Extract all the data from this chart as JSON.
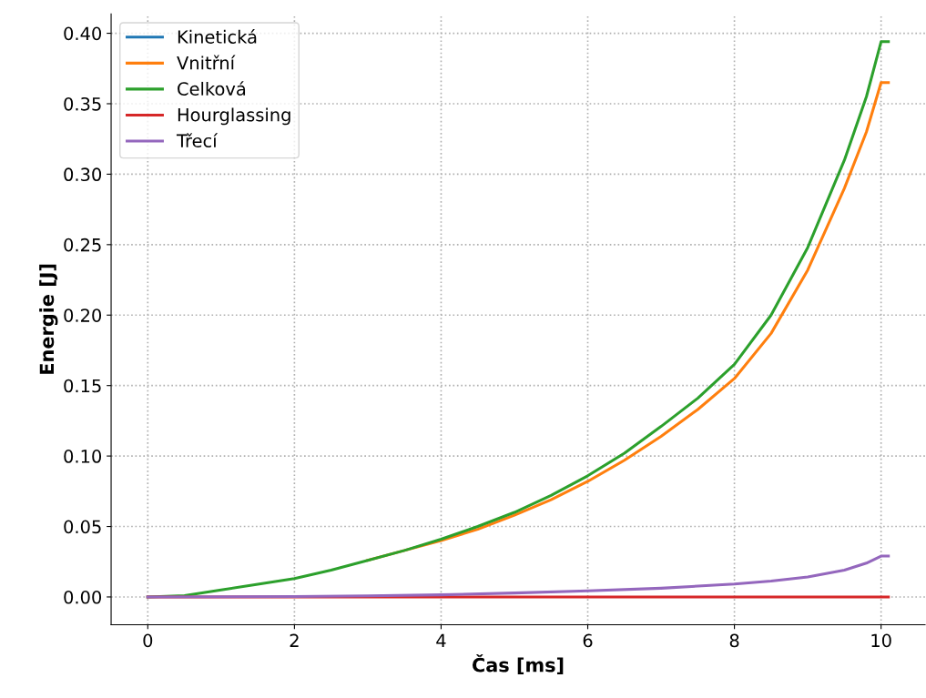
{
  "chart_data": {
    "type": "line",
    "xlabel": "Čas [ms]",
    "ylabel": "Energie [J]",
    "xlim": [
      -0.5,
      10.6
    ],
    "ylim": [
      -0.0197,
      0.4137
    ],
    "xticks": [
      0,
      2,
      4,
      6,
      8,
      10
    ],
    "yticks": [
      {
        "value": 0,
        "label": "0.00"
      },
      {
        "value": 0.05,
        "label": "0.05"
      },
      {
        "value": 0.1,
        "label": "0.10"
      },
      {
        "value": 0.15,
        "label": "0.15"
      },
      {
        "value": 0.2,
        "label": "0.20"
      },
      {
        "value": 0.25,
        "label": "0.25"
      },
      {
        "value": 0.3,
        "label": "0.30"
      },
      {
        "value": 0.35,
        "label": "0.35"
      },
      {
        "value": 0.4,
        "label": "0.40"
      }
    ],
    "grid": true,
    "legend": "top left",
    "marker": "none",
    "series": [
      {
        "name": "Kinetická",
        "color": "#1f77b4"
      },
      {
        "name": "Vnitřní",
        "color": "#ff7f0e",
        "x": [
          3,
          3.5,
          4,
          4.5,
          5,
          5.5,
          6,
          6.5,
          7,
          7.5,
          8,
          8.5,
          9,
          9.5,
          9.8,
          10,
          10.1
        ],
        "values": [
          0.026,
          0.033,
          0.04,
          0.048,
          0.058,
          0.069,
          0.082,
          0.097,
          0.114,
          0.133,
          0.155,
          0.187,
          0.232,
          0.29,
          0.33,
          0.365,
          0.365
        ]
      },
      {
        "name": "Celková",
        "color": "#2ca02c",
        "x": [
          0,
          0.5,
          1,
          1.5,
          2,
          2.5,
          3,
          3.5,
          4,
          4.5,
          5,
          5.5,
          6,
          6.5,
          7,
          7.5,
          8,
          8.5,
          9,
          9.5,
          9.8,
          10,
          10.1
        ],
        "values": [
          0,
          0.001,
          0.005,
          0.009,
          0.013,
          0.019,
          0.026,
          0.033,
          0.041,
          0.05,
          0.06,
          0.072,
          0.086,
          0.102,
          0.121,
          0.141,
          0.165,
          0.2,
          0.248,
          0.31,
          0.355,
          0.394,
          0.394
        ]
      },
      {
        "name": "Hourglassing",
        "color": "#d62728",
        "x": [
          0,
          10.1
        ],
        "values": [
          0,
          0
        ]
      },
      {
        "name": "Třecí",
        "color": "#9467bd",
        "x": [
          0,
          2,
          3,
          4,
          5,
          6,
          7,
          8,
          8.5,
          9,
          9.5,
          9.8,
          10,
          10.1
        ],
        "values": [
          0,
          0.0003,
          0.0008,
          0.0015,
          0.0028,
          0.0043,
          0.0062,
          0.0092,
          0.0113,
          0.0142,
          0.019,
          0.024,
          0.029,
          0.029
        ]
      }
    ]
  }
}
